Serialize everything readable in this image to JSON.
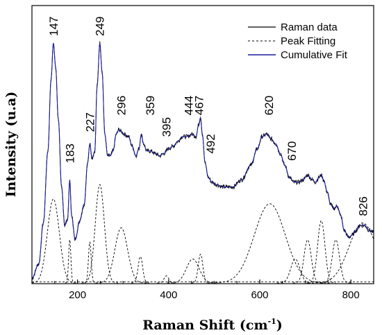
{
  "chart_data": {
    "type": "line",
    "xlabel": "Raman Shift (cm",
    "xlabel_sup": "-1",
    "xlabel_end": ")",
    "ylabel": "Intensity (u.a)",
    "xlim": [
      100,
      850
    ],
    "ylim": [
      0,
      1.0
    ],
    "x_ticks": [
      200,
      400,
      600,
      800
    ],
    "y_ticks_shown": false,
    "legend": {
      "position": "top-right",
      "entries": [
        {
          "label": "Raman data",
          "color": "#000000",
          "style": "solid"
        },
        {
          "label": "Peak Fitting",
          "color": "#000000",
          "style": "dashed"
        },
        {
          "label": "Cumulative Fit",
          "color": "#1a1a9a",
          "style": "solid"
        }
      ]
    },
    "peak_labels": [
      {
        "text": "147",
        "x": 147,
        "y": 1.0
      },
      {
        "text": "183",
        "x": 183,
        "y": 0.47
      },
      {
        "text": "227",
        "x": 227,
        "y": 0.6
      },
      {
        "text": "249",
        "x": 249,
        "y": 1.0
      },
      {
        "text": "296",
        "x": 296,
        "y": 0.67
      },
      {
        "text": "359",
        "x": 359,
        "y": 0.67
      },
      {
        "text": "395",
        "x": 395,
        "y": 0.58
      },
      {
        "text": "444",
        "x": 444,
        "y": 0.67
      },
      {
        "text": "467",
        "x": 467,
        "y": 0.67
      },
      {
        "text": "492",
        "x": 492,
        "y": 0.51
      },
      {
        "text": "620",
        "x": 620,
        "y": 0.67
      },
      {
        "text": "670",
        "x": 670,
        "y": 0.48
      },
      {
        "text": "826",
        "x": 826,
        "y": 0.25
      }
    ],
    "fit_components": [
      {
        "center": 147,
        "amp": 0.35,
        "width": 13
      },
      {
        "center": 183,
        "amp": 0.18,
        "width": 2.5
      },
      {
        "center": 227,
        "amp": 0.17,
        "width": 3
      },
      {
        "center": 249,
        "amp": 0.41,
        "width": 10
      },
      {
        "center": 296,
        "amp": 0.23,
        "width": 14
      },
      {
        "center": 338,
        "amp": 0.11,
        "width": 5
      },
      {
        "center": 395,
        "amp": 0.03,
        "width": 5
      },
      {
        "center": 453,
        "amp": 0.1,
        "width": 14
      },
      {
        "center": 470,
        "amp": 0.12,
        "width": 5
      },
      {
        "center": 622,
        "amp": 0.33,
        "width": 34
      },
      {
        "center": 678,
        "amp": 0.1,
        "width": 10
      },
      {
        "center": 705,
        "amp": 0.18,
        "width": 8
      },
      {
        "center": 735,
        "amp": 0.26,
        "width": 8
      },
      {
        "center": 767,
        "amp": 0.18,
        "width": 8
      },
      {
        "center": 826,
        "amp": 0.25,
        "width": 30
      }
    ],
    "series": [
      {
        "name": "Raman data",
        "color": "#000000",
        "style": "solid"
      },
      {
        "name": "Cumulative Fit",
        "color": "#1a1a9a",
        "style": "solid",
        "points": [
          [
            100,
            0.02
          ],
          [
            115,
            0.08
          ],
          [
            125,
            0.25
          ],
          [
            135,
            0.55
          ],
          [
            142,
            0.85
          ],
          [
            147,
            1.0
          ],
          [
            152,
            0.9
          ],
          [
            158,
            0.68
          ],
          [
            165,
            0.4
          ],
          [
            172,
            0.24
          ],
          [
            178,
            0.26
          ],
          [
            183,
            0.43
          ],
          [
            187,
            0.28
          ],
          [
            195,
            0.18
          ],
          [
            205,
            0.26
          ],
          [
            215,
            0.33
          ],
          [
            222,
            0.5
          ],
          [
            227,
            0.58
          ],
          [
            232,
            0.52
          ],
          [
            238,
            0.55
          ],
          [
            243,
            0.82
          ],
          [
            249,
            1.0
          ],
          [
            254,
            0.88
          ],
          [
            260,
            0.62
          ],
          [
            266,
            0.53
          ],
          [
            272,
            0.53
          ],
          [
            278,
            0.55
          ],
          [
            285,
            0.62
          ],
          [
            291,
            0.64
          ],
          [
            296,
            0.63
          ],
          [
            303,
            0.62
          ],
          [
            312,
            0.61
          ],
          [
            320,
            0.57
          ],
          [
            328,
            0.53
          ],
          [
            335,
            0.56
          ],
          [
            340,
            0.62
          ],
          [
            345,
            0.58
          ],
          [
            352,
            0.55
          ],
          [
            360,
            0.55
          ],
          [
            370,
            0.54
          ],
          [
            380,
            0.53
          ],
          [
            390,
            0.54
          ],
          [
            400,
            0.56
          ],
          [
            410,
            0.57
          ],
          [
            420,
            0.59
          ],
          [
            430,
            0.61
          ],
          [
            440,
            0.61
          ],
          [
            452,
            0.62
          ],
          [
            460,
            0.61
          ],
          [
            466,
            0.66
          ],
          [
            470,
            0.69
          ],
          [
            474,
            0.62
          ],
          [
            480,
            0.5
          ],
          [
            487,
            0.44
          ],
          [
            495,
            0.42
          ],
          [
            505,
            0.41
          ],
          [
            520,
            0.4
          ],
          [
            540,
            0.4
          ],
          [
            560,
            0.43
          ],
          [
            580,
            0.49
          ],
          [
            595,
            0.56
          ],
          [
            605,
            0.61
          ],
          [
            615,
            0.62
          ],
          [
            625,
            0.6
          ],
          [
            635,
            0.58
          ],
          [
            645,
            0.54
          ],
          [
            655,
            0.49
          ],
          [
            665,
            0.44
          ],
          [
            675,
            0.42
          ],
          [
            685,
            0.42
          ],
          [
            695,
            0.43
          ],
          [
            705,
            0.45
          ],
          [
            715,
            0.43
          ],
          [
            722,
            0.42
          ],
          [
            730,
            0.44
          ],
          [
            735,
            0.45
          ],
          [
            740,
            0.43
          ],
          [
            748,
            0.38
          ],
          [
            755,
            0.33
          ],
          [
            762,
            0.31
          ],
          [
            770,
            0.32
          ],
          [
            778,
            0.28
          ],
          [
            785,
            0.22
          ],
          [
            795,
            0.19
          ],
          [
            803,
            0.2
          ],
          [
            812,
            0.22
          ],
          [
            820,
            0.24
          ],
          [
            830,
            0.24
          ],
          [
            840,
            0.22
          ],
          [
            850,
            0.21
          ]
        ]
      }
    ]
  }
}
